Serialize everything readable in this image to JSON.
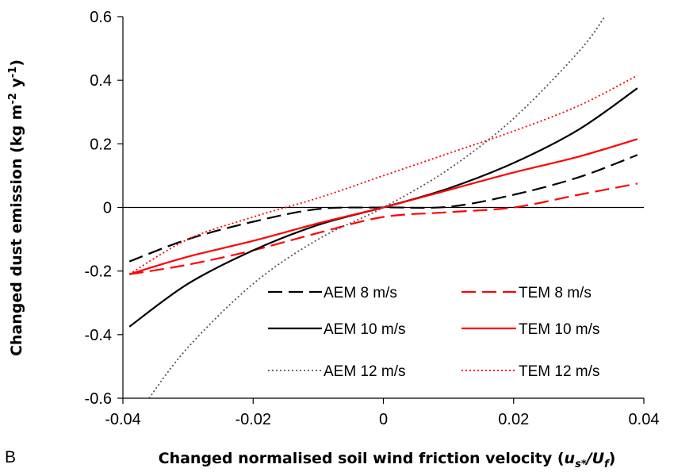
{
  "panel_label": "B",
  "chart_data": {
    "type": "line",
    "title": "",
    "xlabel": "Changed normalised soil wind friction velocity (",
    "xlabel_math": {
      "u": "u",
      "u_sub": "s*",
      "slash": "/",
      "U": "U",
      "U_sub": "f",
      "close": ")"
    },
    "ylabel": "Changed dust emission (kg m",
    "ylabel_parts": {
      "exp1": "-2",
      "mid": " y",
      "exp2": "-1",
      "close": ")"
    },
    "xlim": [
      -0.04,
      0.04
    ],
    "ylim": [
      -0.6,
      0.6
    ],
    "xticks": [
      -0.04,
      -0.02,
      0,
      0.02,
      0.04
    ],
    "xtick_labels": [
      "-0.04",
      "-0.02",
      "0",
      "0.02",
      "0.04"
    ],
    "yticks": [
      0.6,
      0.4,
      0.2,
      0,
      -0.2,
      -0.4,
      -0.6
    ],
    "ytick_labels": [
      "0.6",
      "0.4",
      "0.2",
      "0",
      "-0.2",
      "-0.4",
      "-0.6"
    ],
    "grid": false,
    "legend_position": "bottom-right (inside plot)",
    "series": [
      {
        "name": "AEM 8 m/s",
        "color": "#000000",
        "style": "dashed",
        "x": [
          -0.039,
          -0.03,
          -0.02,
          -0.01,
          0,
          0.01,
          0.02,
          0.03,
          0.039
        ],
        "y": [
          -0.17,
          -0.1,
          -0.045,
          -0.005,
          0,
          0.002,
          0.04,
          0.095,
          0.165
        ]
      },
      {
        "name": "TEM 8 m/s",
        "color": "#ff0000",
        "style": "dashed",
        "x": [
          -0.039,
          -0.03,
          -0.02,
          -0.01,
          0,
          0.01,
          0.02,
          0.03,
          0.039
        ],
        "y": [
          -0.21,
          -0.18,
          -0.135,
          -0.08,
          -0.03,
          -0.015,
          0.0,
          0.04,
          0.075
        ]
      },
      {
        "name": "AEM 10 m/s",
        "color": "#000000",
        "style": "solid",
        "x": [
          -0.039,
          -0.03,
          -0.02,
          -0.01,
          0,
          0.01,
          0.02,
          0.03,
          0.039
        ],
        "y": [
          -0.375,
          -0.24,
          -0.135,
          -0.055,
          0,
          0.06,
          0.14,
          0.245,
          0.375
        ]
      },
      {
        "name": "TEM 10 m/s",
        "color": "#ff0000",
        "style": "solid",
        "x": [
          -0.039,
          -0.03,
          -0.02,
          -0.01,
          0,
          0.01,
          0.02,
          0.03,
          0.039
        ],
        "y": [
          -0.21,
          -0.155,
          -0.105,
          -0.05,
          0,
          0.055,
          0.11,
          0.16,
          0.215
        ]
      },
      {
        "name": "AEM 12 m/s",
        "color": "#555555",
        "style": "dotted",
        "x": [
          -0.036,
          -0.03,
          -0.02,
          -0.01,
          0,
          0.01,
          0.02,
          0.03,
          0.034
        ],
        "y": [
          -0.6,
          -0.44,
          -0.24,
          -0.1,
          0,
          0.12,
          0.28,
          0.49,
          0.6
        ]
      },
      {
        "name": "TEM 12 m/s",
        "color": "#ff0000",
        "style": "dotted",
        "x": [
          -0.039,
          -0.03,
          -0.02,
          -0.01,
          0,
          0.01,
          0.02,
          0.03,
          0.039
        ],
        "y": [
          -0.21,
          -0.1,
          -0.03,
          0.03,
          0.1,
          0.17,
          0.24,
          0.32,
          0.415
        ]
      }
    ]
  }
}
